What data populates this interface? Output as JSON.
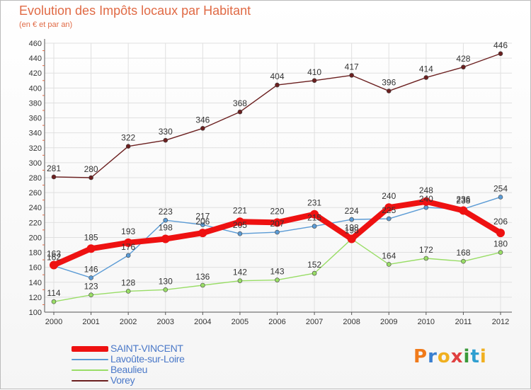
{
  "header": {
    "title": "Evolution des Impôts locaux par Habitant",
    "subtitle": "(en € et par an)"
  },
  "colors": {
    "title": "#e06a45",
    "legend_text": "#4a78c8",
    "axis_text": "#333333",
    "grid": "#e0e0e0"
  },
  "chart_data": {
    "type": "line",
    "title": "Evolution des Impôts locaux par Habitant",
    "subtitle": "(en € et par an)",
    "xlabel": "",
    "ylabel": "",
    "x": [
      "2000",
      "2001",
      "2002",
      "2003",
      "2004",
      "2005",
      "2006",
      "2007",
      "2008",
      "2009",
      "2010",
      "2011",
      "2012"
    ],
    "ylim": [
      100,
      460
    ],
    "yticks": [
      "100",
      "120",
      "140",
      "160",
      "180",
      "200",
      "220",
      "240",
      "260",
      "280",
      "300",
      "320",
      "340",
      "360",
      "380",
      "400",
      "420",
      "440",
      "460"
    ],
    "grid": true,
    "legend_position": "bottom-left",
    "series": [
      {
        "name": "SAINT-VINCENT",
        "color": "#ee1111",
        "values": [
          163,
          185,
          193,
          198,
          206,
          221,
          220,
          231,
          198,
          240,
          248,
          236,
          206
        ],
        "labels": [
          "163",
          "185",
          "193",
          "198",
          "206",
          "221",
          "220",
          "231",
          "198",
          "240",
          "248",
          "236",
          "206"
        ]
      },
      {
        "name": "Lavoûte-sur-Loire",
        "color": "#5b9bd5",
        "values": [
          162,
          146,
          176,
          223,
          217,
          205,
          207,
          215,
          224,
          225,
          240,
          238,
          254
        ],
        "labels": [
          "162",
          "146",
          "176",
          "223",
          "217",
          "205",
          "207",
          "215",
          "224",
          "225",
          "240",
          "238",
          "254"
        ]
      },
      {
        "name": "Beaulieu",
        "color": "#99dd66",
        "values": [
          114,
          123,
          128,
          130,
          136,
          142,
          143,
          152,
          198,
          164,
          172,
          168,
          180
        ],
        "labels": [
          "114",
          "123",
          "128",
          "130",
          "136",
          "142",
          "143",
          "152",
          "198",
          "164",
          "172",
          "168",
          "180"
        ]
      },
      {
        "name": "Vorey",
        "color": "#6b1f1f",
        "values": [
          281,
          280,
          322,
          330,
          346,
          368,
          404,
          410,
          417,
          396,
          414,
          428,
          446
        ],
        "labels": [
          "281",
          "280",
          "322",
          "330",
          "346",
          "368",
          "404",
          "410",
          "417",
          "396",
          "414",
          "428",
          "446"
        ]
      }
    ]
  },
  "logo": {
    "letters": [
      "P",
      "r",
      "o",
      "x",
      "i",
      "t",
      "i"
    ],
    "colors": [
      "#f07a1a",
      "#3a7fd0",
      "#f0b020",
      "#e04040",
      "#3a9a3a",
      "#2f9fd0",
      "#f0b020"
    ]
  }
}
